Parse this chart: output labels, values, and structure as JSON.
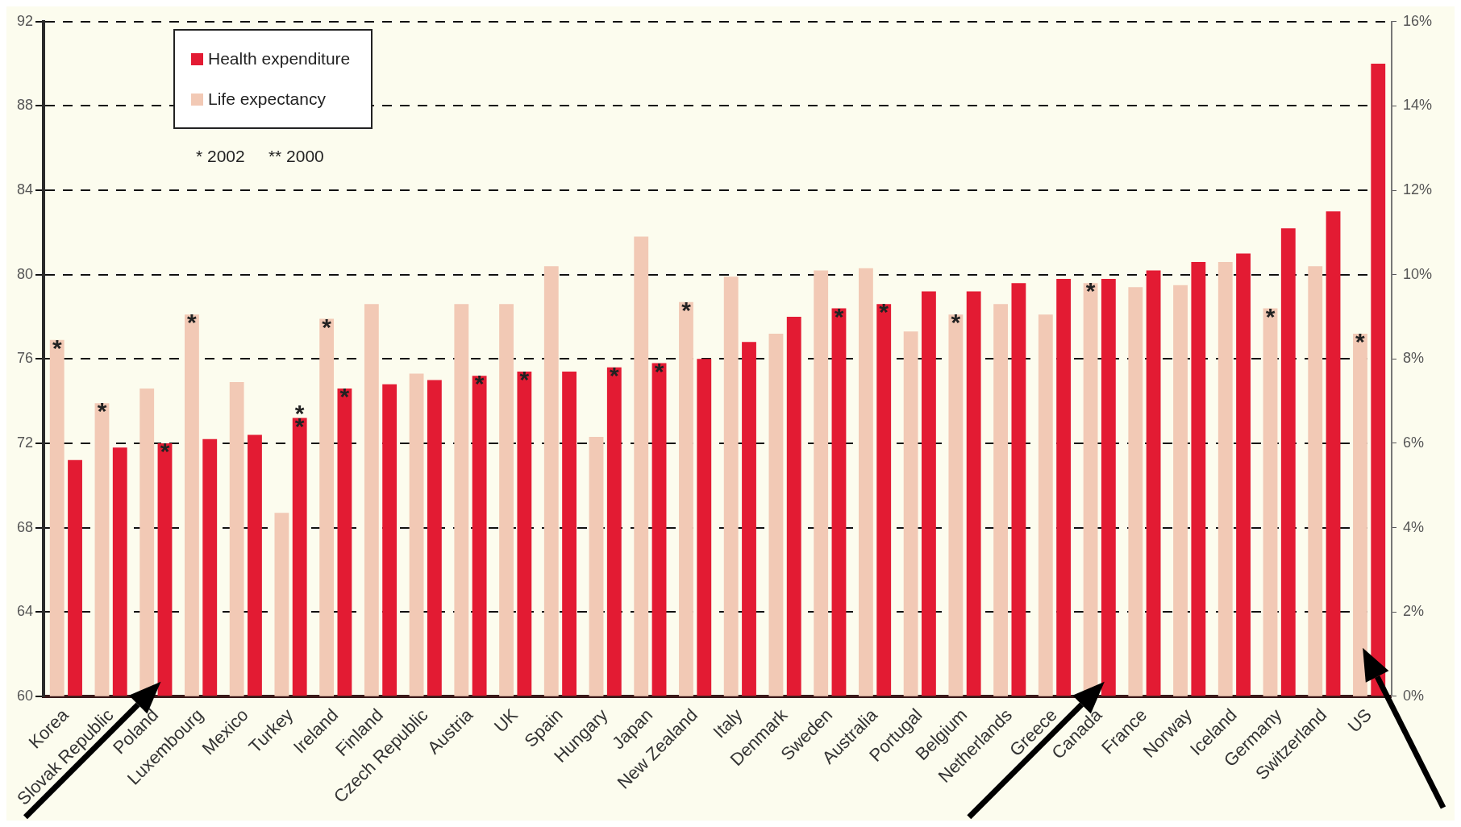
{
  "chart_data": {
    "type": "bar",
    "categories": [
      "Korea",
      "Slovak Republic",
      "Poland",
      "Luxembourg",
      "Mexico",
      "Turkey",
      "Ireland",
      "Finland",
      "Czech Republic",
      "Austria",
      "UK",
      "Spain",
      "Hungary",
      "Japan",
      "New Zealand",
      "Italy",
      "Denmark",
      "Sweden",
      "Australia",
      "Portugal",
      "Belgium",
      "Netherlands",
      "Greece",
      "Canada",
      "France",
      "Norway",
      "Iceland",
      "Germany",
      "Switzerland",
      "US"
    ],
    "series": [
      {
        "name": "Health expenditure",
        "color": "#e31b33",
        "axis": "y2",
        "values": [
          5.6,
          5.9,
          6.0,
          6.1,
          6.2,
          6.6,
          7.3,
          7.4,
          7.5,
          7.6,
          7.7,
          7.7,
          7.8,
          7.9,
          8.0,
          8.4,
          9.0,
          9.2,
          9.3,
          9.6,
          9.6,
          9.8,
          9.9,
          9.9,
          10.1,
          10.3,
          10.5,
          11.1,
          11.5,
          15.0
        ]
      },
      {
        "name": "Life expectancy",
        "color": "#f2c9b5",
        "values": [
          76.9,
          73.9,
          74.6,
          78.1,
          74.9,
          68.7,
          77.9,
          78.6,
          75.3,
          78.6,
          78.6,
          80.4,
          72.3,
          81.8,
          78.7,
          79.9,
          77.2,
          80.2,
          80.3,
          77.3,
          78.1,
          78.6,
          78.1,
          79.6,
          79.4,
          79.5,
          80.6,
          78.4,
          80.4,
          77.2
        ]
      }
    ],
    "ylim": [
      60,
      92
    ],
    "yticks": [
      60,
      64,
      68,
      72,
      76,
      80,
      84,
      88,
      92
    ],
    "y2lim": [
      0,
      16
    ],
    "y2ticks": [
      {
        "value": 0,
        "label": "0%"
      },
      {
        "value": 2,
        "label": "2%"
      },
      {
        "value": 4,
        "label": "4%"
      },
      {
        "value": 6,
        "label": "6%"
      },
      {
        "value": 8,
        "label": "8%"
      },
      {
        "value": 10,
        "label": "10%"
      },
      {
        "value": 12,
        "label": "12%"
      },
      {
        "value": 14,
        "label": "14%"
      },
      {
        "value": 16,
        "label": "16%"
      }
    ],
    "grid": "y",
    "legend": "top left",
    "annotations": [
      "* 2002     ** 2000",
      {
        "text": "*",
        "x": "Korea",
        "y": 76.9
      },
      {
        "text": "*",
        "x": "Slovak Republic",
        "y": 73.9
      },
      {
        "text": "*",
        "x": "Poland",
        "y": 72.0
      },
      {
        "text": "*",
        "x": "Luxembourg",
        "y": 78.1
      },
      {
        "text": "**",
        "x": "Turkey",
        "y": 73.2
      },
      {
        "text": "*",
        "x": "Ireland",
        "y": 77.9
      },
      {
        "text": "*",
        "x": "Ireland",
        "y": 74.6
      },
      {
        "text": "*",
        "x": "Austria",
        "y": 75.2
      },
      {
        "text": "*",
        "x": "UK",
        "y": 75.4
      },
      {
        "text": "*",
        "x": "Hungary",
        "y": 75.6
      },
      {
        "text": "*",
        "x": "Japan",
        "y": 75.8
      },
      {
        "text": "*",
        "x": "New Zealand",
        "y": 78.7
      },
      {
        "text": "*",
        "x": "Sweden",
        "y": 78.4
      },
      {
        "text": "*",
        "x": "Australia",
        "y": 78.6
      },
      {
        "text": "*",
        "x": "Belgium",
        "y": 78.1
      },
      {
        "text": "*",
        "x": "Canada",
        "y": 79.6
      },
      {
        "text": "*",
        "x": "Germany",
        "y": 78.4
      },
      {
        "text": "*",
        "x": "US",
        "y": 77.2
      }
    ]
  }
}
